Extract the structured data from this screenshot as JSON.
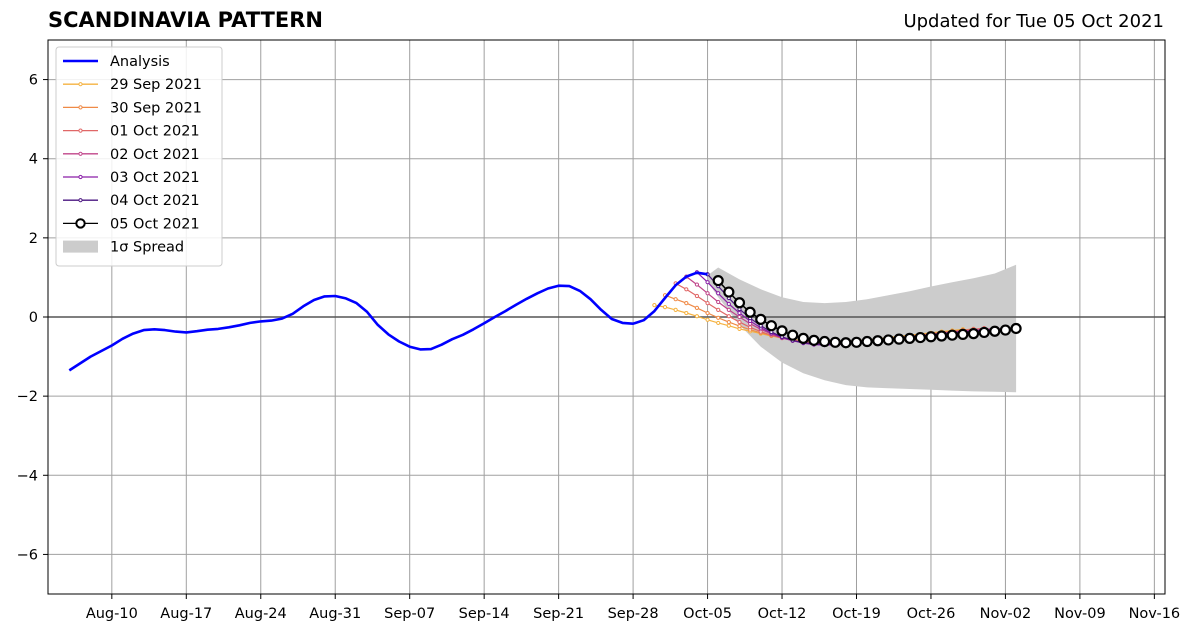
{
  "chart_data": {
    "type": "line",
    "title": "SCANDINAVIA PATTERN",
    "subtitle": "Updated for Tue 05 Oct 2021",
    "xlabel": "",
    "ylabel": "",
    "x_is_date": true,
    "xlim": [
      "2021-08-04",
      "2021-11-17"
    ],
    "ylim": [
      -7,
      7
    ],
    "x_tick_dates": [
      "2021-08-10",
      "2021-08-17",
      "2021-08-24",
      "2021-08-31",
      "2021-09-07",
      "2021-09-14",
      "2021-09-21",
      "2021-09-28",
      "2021-10-05",
      "2021-10-12",
      "2021-10-19",
      "2021-10-26",
      "2021-11-02",
      "2021-11-09",
      "2021-11-16"
    ],
    "x_tick_labels": [
      "Aug-10",
      "Aug-17",
      "Aug-24",
      "Aug-31",
      "Sep-07",
      "Sep-14",
      "Sep-21",
      "Sep-28",
      "Oct-05",
      "Oct-12",
      "Oct-19",
      "Oct-26",
      "Nov-02",
      "Nov-09",
      "Nov-16"
    ],
    "y_ticks": [
      -6,
      -4,
      -2,
      0,
      2,
      4,
      6
    ],
    "y_tick_labels": [
      "−6",
      "−4",
      "−2",
      "0",
      "2",
      "4",
      "6"
    ],
    "grid": true,
    "legend_position": "top-left",
    "zero_line": 0,
    "colors": {
      "analysis": "#0000ff",
      "spread": "#cccccc",
      "grid": "#a0a0a0",
      "zero_line": "#555555"
    },
    "analysis": {
      "name": "Analysis",
      "x": [
        "2021-08-06",
        "2021-08-08",
        "2021-08-10",
        "2021-08-11",
        "2021-08-12",
        "2021-08-13",
        "2021-08-14",
        "2021-08-15",
        "2021-08-16",
        "2021-08-17",
        "2021-08-18",
        "2021-08-19",
        "2021-08-20",
        "2021-08-21",
        "2021-08-22",
        "2021-08-23",
        "2021-08-24",
        "2021-08-25",
        "2021-08-26",
        "2021-08-27",
        "2021-08-28",
        "2021-08-29",
        "2021-08-30",
        "2021-08-31",
        "2021-09-01",
        "2021-09-02",
        "2021-09-03",
        "2021-09-04",
        "2021-09-05",
        "2021-09-06",
        "2021-09-07",
        "2021-09-08",
        "2021-09-09",
        "2021-09-10",
        "2021-09-11",
        "2021-09-12",
        "2021-09-13",
        "2021-09-14",
        "2021-09-15",
        "2021-09-16",
        "2021-09-17",
        "2021-09-18",
        "2021-09-19",
        "2021-09-20",
        "2021-09-21",
        "2021-09-22",
        "2021-09-23",
        "2021-09-24",
        "2021-09-25",
        "2021-09-26",
        "2021-09-27",
        "2021-09-28",
        "2021-09-29",
        "2021-09-30",
        "2021-10-01",
        "2021-10-02",
        "2021-10-03",
        "2021-10-04",
        "2021-10-05"
      ],
      "y": [
        -1.35,
        -1.0,
        -0.72,
        -0.55,
        -0.42,
        -0.33,
        -0.31,
        -0.33,
        -0.37,
        -0.39,
        -0.36,
        -0.32,
        -0.3,
        -0.26,
        -0.21,
        -0.15,
        -0.11,
        -0.09,
        -0.04,
        0.08,
        0.27,
        0.43,
        0.52,
        0.53,
        0.47,
        0.35,
        0.13,
        -0.2,
        -0.44,
        -0.62,
        -0.75,
        -0.82,
        -0.81,
        -0.7,
        -0.56,
        -0.45,
        -0.31,
        -0.16,
        0.0,
        0.15,
        0.31,
        0.46,
        0.6,
        0.72,
        0.79,
        0.78,
        0.66,
        0.45,
        0.18,
        -0.05,
        -0.15,
        -0.17,
        -0.08,
        0.15,
        0.48,
        0.8,
        1.02,
        1.12,
        1.08
      ]
    },
    "series": [
      {
        "name": "29 Sep 2021",
        "color": "#f5b240",
        "x": [
          "2021-09-30",
          "2021-10-01",
          "2021-10-02",
          "2021-10-03",
          "2021-10-04",
          "2021-10-05",
          "2021-10-06",
          "2021-10-07",
          "2021-10-08",
          "2021-10-09",
          "2021-10-10",
          "2021-10-11",
          "2021-10-12",
          "2021-10-13",
          "2021-10-14",
          "2021-10-15",
          "2021-10-16",
          "2021-10-17",
          "2021-10-18",
          "2021-10-19",
          "2021-10-20",
          "2021-10-21",
          "2021-10-22",
          "2021-10-23",
          "2021-10-24",
          "2021-10-25",
          "2021-10-26",
          "2021-10-27",
          "2021-10-28",
          "2021-10-29"
        ],
        "y": [
          0.3,
          0.25,
          0.18,
          0.1,
          0.02,
          -0.07,
          -0.15,
          -0.22,
          -0.3,
          -0.36,
          -0.42,
          -0.48,
          -0.53,
          -0.57,
          -0.6,
          -0.62,
          -0.63,
          -0.63,
          -0.62,
          -0.6,
          -0.58,
          -0.55,
          -0.52,
          -0.49,
          -0.46,
          -0.43,
          -0.4,
          -0.37,
          -0.34,
          -0.31
        ]
      },
      {
        "name": "30 Sep 2021",
        "color": "#ef8a47",
        "x": [
          "2021-10-01",
          "2021-10-02",
          "2021-10-03",
          "2021-10-04",
          "2021-10-05",
          "2021-10-06",
          "2021-10-07",
          "2021-10-08",
          "2021-10-09",
          "2021-10-10",
          "2021-10-11",
          "2021-10-12",
          "2021-10-13",
          "2021-10-14",
          "2021-10-15",
          "2021-10-16",
          "2021-10-17",
          "2021-10-18",
          "2021-10-19",
          "2021-10-20",
          "2021-10-21",
          "2021-10-22",
          "2021-10-23",
          "2021-10-24",
          "2021-10-25",
          "2021-10-26",
          "2021-10-27",
          "2021-10-28",
          "2021-10-29",
          "2021-10-30"
        ],
        "y": [
          0.55,
          0.45,
          0.35,
          0.23,
          0.1,
          -0.02,
          -0.13,
          -0.23,
          -0.32,
          -0.4,
          -0.47,
          -0.53,
          -0.58,
          -0.62,
          -0.64,
          -0.65,
          -0.65,
          -0.64,
          -0.62,
          -0.6,
          -0.57,
          -0.54,
          -0.51,
          -0.48,
          -0.45,
          -0.42,
          -0.39,
          -0.36,
          -0.33,
          -0.3
        ]
      },
      {
        "name": "01 Oct 2021",
        "color": "#e06767",
        "x": [
          "2021-10-02",
          "2021-10-03",
          "2021-10-04",
          "2021-10-05",
          "2021-10-06",
          "2021-10-07",
          "2021-10-08",
          "2021-10-09",
          "2021-10-10",
          "2021-10-11",
          "2021-10-12",
          "2021-10-13",
          "2021-10-14",
          "2021-10-15",
          "2021-10-16",
          "2021-10-17",
          "2021-10-18",
          "2021-10-19",
          "2021-10-20",
          "2021-10-21",
          "2021-10-22",
          "2021-10-23",
          "2021-10-24",
          "2021-10-25",
          "2021-10-26",
          "2021-10-27",
          "2021-10-28",
          "2021-10-29",
          "2021-10-30",
          "2021-10-31"
        ],
        "y": [
          0.85,
          0.7,
          0.53,
          0.35,
          0.18,
          0.02,
          -0.13,
          -0.26,
          -0.37,
          -0.46,
          -0.53,
          -0.59,
          -0.63,
          -0.65,
          -0.66,
          -0.66,
          -0.65,
          -0.63,
          -0.61,
          -0.58,
          -0.55,
          -0.52,
          -0.49,
          -0.46,
          -0.43,
          -0.4,
          -0.37,
          -0.34,
          -0.31,
          -0.28
        ]
      },
      {
        "name": "02 Oct 2021",
        "color": "#c0458a",
        "x": [
          "2021-10-03",
          "2021-10-04",
          "2021-10-05",
          "2021-10-06",
          "2021-10-07",
          "2021-10-08",
          "2021-10-09",
          "2021-10-10",
          "2021-10-11",
          "2021-10-12",
          "2021-10-13",
          "2021-10-14",
          "2021-10-15",
          "2021-10-16",
          "2021-10-17",
          "2021-10-18",
          "2021-10-19",
          "2021-10-20",
          "2021-10-21",
          "2021-10-22",
          "2021-10-23",
          "2021-10-24",
          "2021-10-25",
          "2021-10-26",
          "2021-10-27",
          "2021-10-28",
          "2021-10-29",
          "2021-10-30",
          "2021-10-31",
          "2021-11-01"
        ],
        "y": [
          1.02,
          0.82,
          0.6,
          0.38,
          0.18,
          0.0,
          -0.17,
          -0.31,
          -0.43,
          -0.53,
          -0.6,
          -0.65,
          -0.68,
          -0.69,
          -0.68,
          -0.67,
          -0.65,
          -0.62,
          -0.59,
          -0.56,
          -0.53,
          -0.5,
          -0.47,
          -0.44,
          -0.41,
          -0.38,
          -0.36,
          -0.33,
          -0.31,
          -0.29
        ]
      },
      {
        "name": "03 Oct 2021",
        "color": "#8a1fa8",
        "x": [
          "2021-10-04",
          "2021-10-05",
          "2021-10-06",
          "2021-10-07",
          "2021-10-08",
          "2021-10-09",
          "2021-10-10",
          "2021-10-11",
          "2021-10-12",
          "2021-10-13",
          "2021-10-14",
          "2021-10-15",
          "2021-10-16",
          "2021-10-17",
          "2021-10-18",
          "2021-10-19",
          "2021-10-20",
          "2021-10-21",
          "2021-10-22",
          "2021-10-23",
          "2021-10-24",
          "2021-10-25",
          "2021-10-26",
          "2021-10-27",
          "2021-10-28",
          "2021-10-29",
          "2021-10-30",
          "2021-10-31",
          "2021-11-01",
          "2021-11-02"
        ],
        "y": [
          1.13,
          0.88,
          0.6,
          0.33,
          0.1,
          -0.1,
          -0.27,
          -0.41,
          -0.52,
          -0.6,
          -0.66,
          -0.7,
          -0.71,
          -0.7,
          -0.68,
          -0.66,
          -0.63,
          -0.6,
          -0.57,
          -0.54,
          -0.51,
          -0.48,
          -0.45,
          -0.42,
          -0.4,
          -0.37,
          -0.35,
          -0.33,
          -0.31,
          -0.29
        ]
      },
      {
        "name": "04 Oct 2021",
        "color": "#4a1580",
        "x": [
          "2021-10-05",
          "2021-10-06",
          "2021-10-07",
          "2021-10-08",
          "2021-10-09",
          "2021-10-10",
          "2021-10-11",
          "2021-10-12",
          "2021-10-13",
          "2021-10-14",
          "2021-10-15",
          "2021-10-16",
          "2021-10-17",
          "2021-10-18",
          "2021-10-19",
          "2021-10-20",
          "2021-10-21",
          "2021-10-22",
          "2021-10-23",
          "2021-10-24",
          "2021-10-25",
          "2021-10-26",
          "2021-10-27",
          "2021-10-28",
          "2021-10-29",
          "2021-10-30",
          "2021-10-31",
          "2021-11-01",
          "2021-11-02",
          "2021-11-03"
        ],
        "y": [
          1.08,
          0.78,
          0.48,
          0.2,
          -0.03,
          -0.22,
          -0.38,
          -0.5,
          -0.59,
          -0.65,
          -0.68,
          -0.69,
          -0.68,
          -0.67,
          -0.65,
          -0.63,
          -0.6,
          -0.57,
          -0.54,
          -0.51,
          -0.48,
          -0.45,
          -0.43,
          -0.4,
          -0.38,
          -0.36,
          -0.34,
          -0.32,
          -0.3,
          -0.28
        ]
      },
      {
        "name": "05 Oct 2021",
        "color": "#000000",
        "x": [
          "2021-10-06",
          "2021-10-07",
          "2021-10-08",
          "2021-10-09",
          "2021-10-10",
          "2021-10-11",
          "2021-10-12",
          "2021-10-13",
          "2021-10-14",
          "2021-10-15",
          "2021-10-16",
          "2021-10-17",
          "2021-10-18",
          "2021-10-19",
          "2021-10-20",
          "2021-10-21",
          "2021-10-22",
          "2021-10-23",
          "2021-10-24",
          "2021-10-25",
          "2021-10-26",
          "2021-10-27",
          "2021-10-28",
          "2021-10-29",
          "2021-10-30",
          "2021-10-31",
          "2021-11-01",
          "2021-11-02",
          "2021-11-03"
        ],
        "y": [
          0.92,
          0.63,
          0.36,
          0.12,
          -0.06,
          -0.22,
          -0.35,
          -0.46,
          -0.54,
          -0.59,
          -0.62,
          -0.64,
          -0.65,
          -0.64,
          -0.62,
          -0.6,
          -0.58,
          -0.56,
          -0.54,
          -0.52,
          -0.5,
          -0.48,
          -0.46,
          -0.44,
          -0.42,
          -0.39,
          -0.36,
          -0.33,
          -0.29
        ]
      }
    ],
    "spread": {
      "name": "1σ Spread",
      "x": [
        "2021-10-05",
        "2021-10-06",
        "2021-10-08",
        "2021-10-10",
        "2021-10-12",
        "2021-10-14",
        "2021-10-16",
        "2021-10-18",
        "2021-10-20",
        "2021-10-22",
        "2021-10-24",
        "2021-10-26",
        "2021-10-28",
        "2021-10-30",
        "2021-11-01",
        "2021-11-03"
      ],
      "upper": [
        1.05,
        1.25,
        0.95,
        0.7,
        0.5,
        0.38,
        0.35,
        0.38,
        0.45,
        0.55,
        0.65,
        0.77,
        0.88,
        0.98,
        1.1,
        1.32
      ],
      "lower": [
        0.9,
        0.5,
        -0.2,
        -0.75,
        -1.15,
        -1.42,
        -1.6,
        -1.72,
        -1.78,
        -1.8,
        -1.82,
        -1.84,
        -1.86,
        -1.88,
        -1.89,
        -1.9
      ]
    }
  }
}
